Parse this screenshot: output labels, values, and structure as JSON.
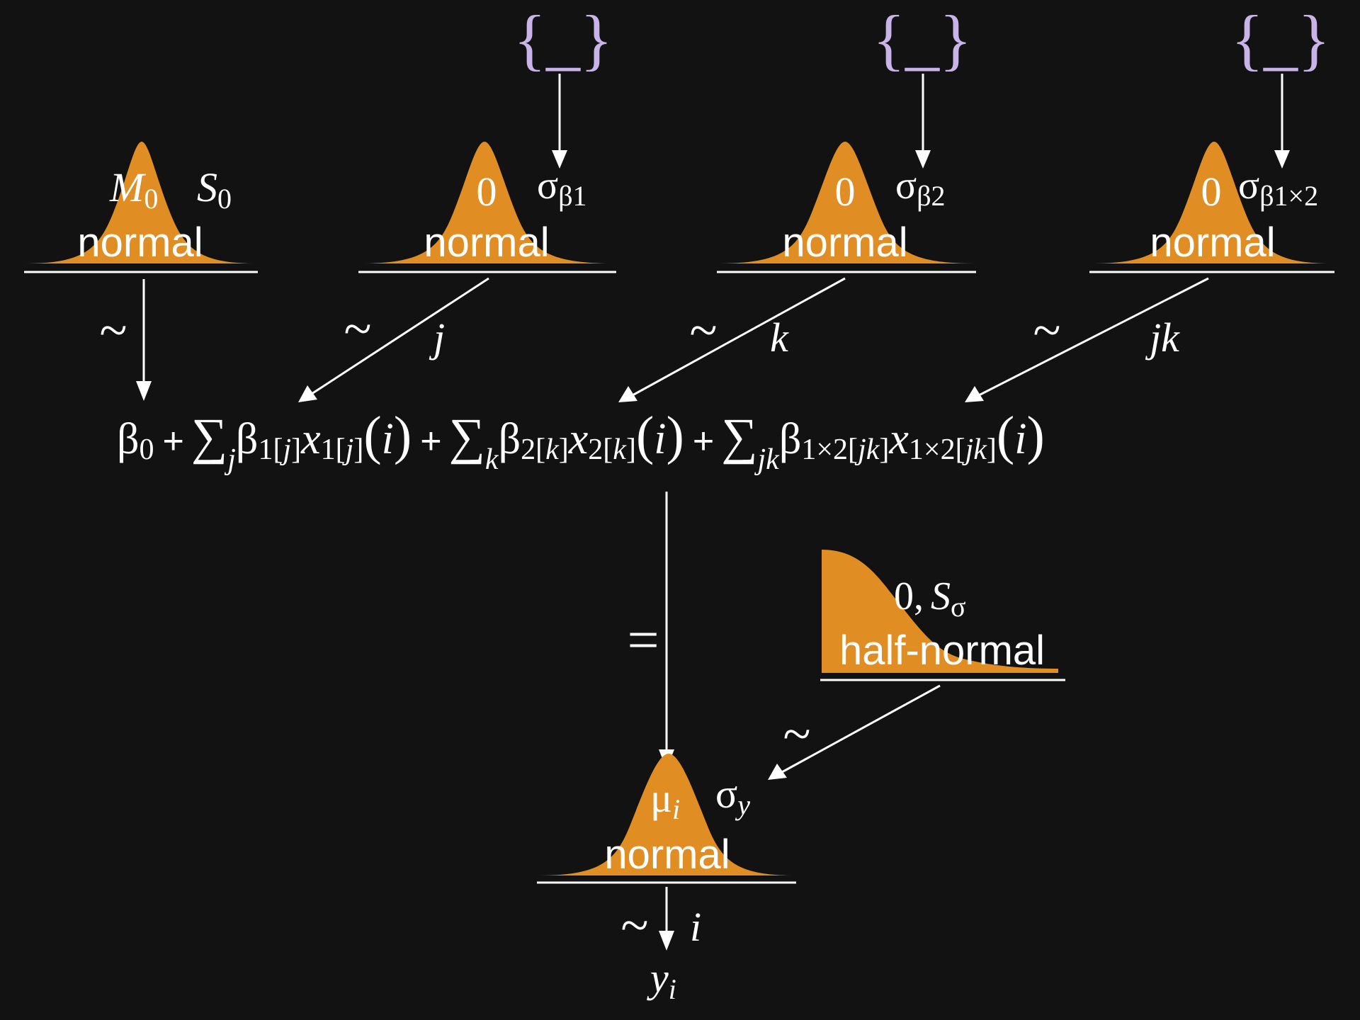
{
  "priors": {
    "b0": {
      "mean_symbol": "M",
      "mean_sub": "0",
      "scale_symbol": "S",
      "scale_sub": "0",
      "dist": "normal"
    },
    "b1": {
      "mean": "0",
      "scale_symbol": "σ",
      "scale_sub": "β1",
      "dist": "normal"
    },
    "b2": {
      "mean": "0",
      "scale_symbol": "σ",
      "scale_sub": "β2",
      "dist": "normal"
    },
    "b12": {
      "mean": "0",
      "scale_symbol": "σ",
      "scale_sub": "β1×2",
      "dist": "normal"
    }
  },
  "hyperpriors": {
    "placeholder": "{_}"
  },
  "links": {
    "tilde": "~",
    "equals": "=",
    "index_j": "j",
    "index_k": "k",
    "index_jk": "jk",
    "index_i": "i"
  },
  "equation": {
    "beta0": "β",
    "sub0": "0",
    "plus": "+",
    "sum": "∑",
    "j": "j",
    "k": "k",
    "jk": "jk",
    "beta": "β",
    "x": "x",
    "sub1": "1[",
    "sub2": "2[",
    "sub12": "1×2[",
    "close": "]",
    "paren_open": "(",
    "paren_close": ")",
    "i": "i"
  },
  "sigma_prior": {
    "mean": "0,",
    "scale_symbol": "S",
    "scale_sub": "σ",
    "dist": "half-normal"
  },
  "likelihood": {
    "mean_symbol": "μ",
    "mean_sub": "i",
    "scale_symbol": "σ",
    "scale_sub": "y",
    "dist": "normal"
  },
  "outcome": {
    "symbol": "y",
    "sub": "i"
  }
}
